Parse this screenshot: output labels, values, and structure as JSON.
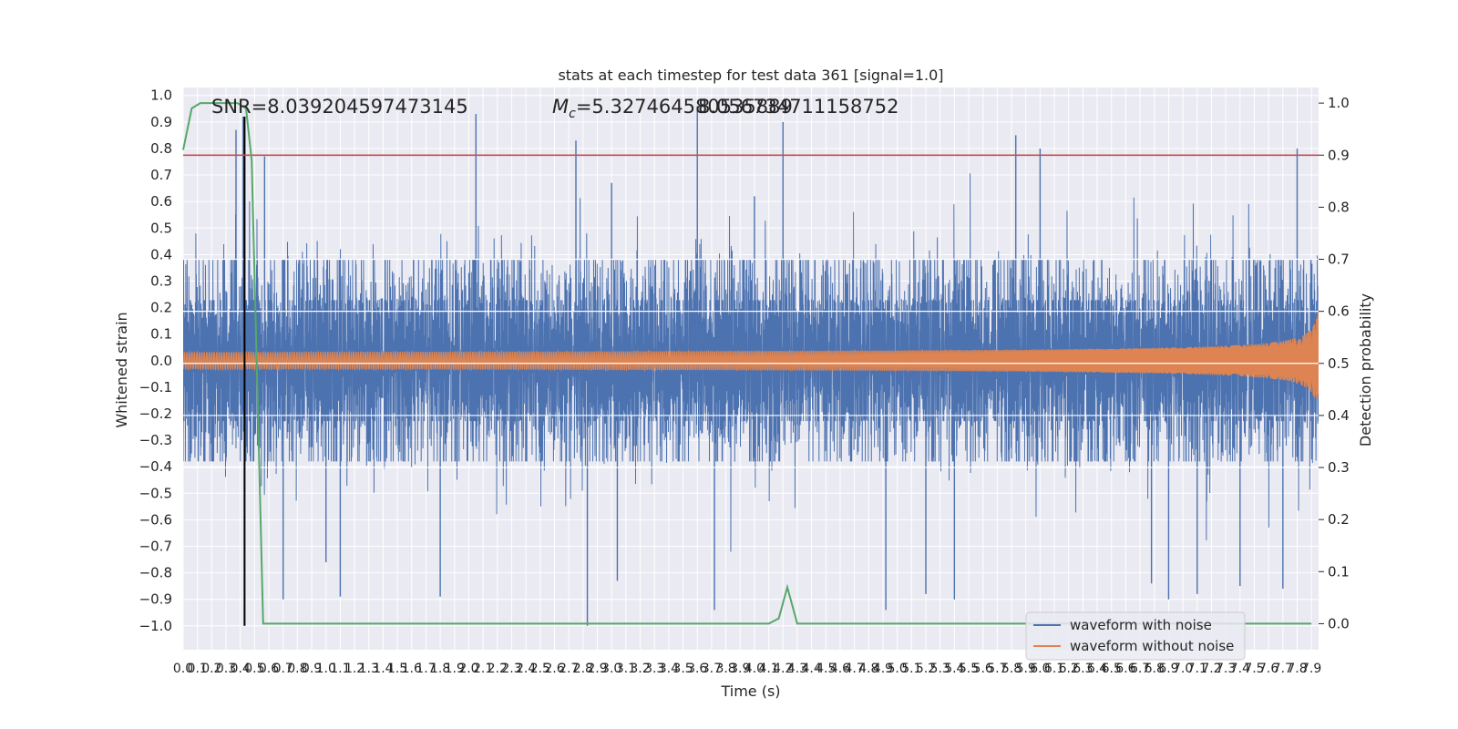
{
  "chart_data": {
    "type": "line",
    "title": "stats at each timestep for test data 361 [signal=1.0]",
    "xlabel": "Time (s)",
    "ylabel_left": "Whitened strain",
    "ylabel_right": "Detection probability",
    "xlim": [
      0.0,
      7.95
    ],
    "ylim_left": [
      -1.09,
      1.03
    ],
    "ylim_right": [
      -0.05,
      1.03
    ],
    "x_ticks": [
      "0.0",
      "0.1",
      "0.2",
      "0.3",
      "0.4",
      "0.5",
      "0.6",
      "0.7",
      "0.8",
      "0.9",
      "1.0",
      "1.1",
      "1.2",
      "1.3",
      "1.4",
      "1.5",
      "1.6",
      "1.7",
      "1.8",
      "1.9",
      "2.0",
      "2.1",
      "2.2",
      "2.3",
      "2.4",
      "2.5",
      "2.6",
      "2.7",
      "2.8",
      "2.9",
      "3.0",
      "3.1",
      "3.2",
      "3.3",
      "3.4",
      "3.5",
      "3.6",
      "3.7",
      "3.8",
      "3.9",
      "4.0",
      "4.1",
      "4.2",
      "4.3",
      "4.4",
      "4.5",
      "4.6",
      "4.7",
      "4.8",
      "4.9",
      "5.0",
      "5.1",
      "5.2",
      "5.3",
      "5.4",
      "5.5",
      "5.6",
      "5.7",
      "5.8",
      "5.9",
      "6.0",
      "6.1",
      "6.2",
      "6.3",
      "6.4",
      "6.5",
      "6.6",
      "6.7",
      "6.8",
      "6.9",
      "7.0",
      "7.1",
      "7.2",
      "7.3",
      "7.4",
      "7.5",
      "7.6",
      "7.7",
      "7.8",
      "7.9"
    ],
    "y_ticks_left": [
      "1.0",
      "0.9",
      "0.8",
      "0.7",
      "0.6",
      "0.5",
      "0.4",
      "0.3",
      "0.2",
      "0.1",
      "0.0",
      "−0.1",
      "−0.2",
      "−0.3",
      "−0.4",
      "−0.5",
      "−0.6",
      "−0.7",
      "−0.8",
      "−0.9",
      "−1.0"
    ],
    "y_ticks_right": [
      "1.0",
      "0.9",
      "0.8",
      "0.7",
      "0.6",
      "0.5",
      "0.4",
      "0.3",
      "0.2",
      "0.1",
      "0.0"
    ],
    "annotations": {
      "snr": "SNR=8.039204597473145",
      "mc_symbol": "M",
      "mc_sub": "c",
      "mc_value": "=5.327464580535889",
      "overlap": "8.056734711158752"
    },
    "threshold": 0.9,
    "event_marker_time": 0.43,
    "series": [
      {
        "name": "waveform with noise",
        "color": "#4c72b0",
        "axis": "left",
        "kind": "noise",
        "rms": 0.3,
        "extremes": [
          [
            0.37,
            0.87
          ],
          [
            0.42,
            0.92
          ],
          [
            0.41,
            -0.3
          ],
          [
            0.57,
            0.77
          ],
          [
            0.7,
            -0.9
          ],
          [
            1.0,
            -0.76
          ],
          [
            1.1,
            -0.89
          ],
          [
            1.8,
            -0.89
          ],
          [
            2.05,
            0.93
          ],
          [
            2.75,
            0.83
          ],
          [
            2.83,
            -1.0
          ],
          [
            3.0,
            0.67
          ],
          [
            3.04,
            -0.83
          ],
          [
            3.6,
            0.96
          ],
          [
            3.72,
            -0.94
          ],
          [
            4.0,
            0.62
          ],
          [
            4.2,
            0.9
          ],
          [
            4.92,
            -0.94
          ],
          [
            5.2,
            -0.88
          ],
          [
            5.4,
            -0.9
          ],
          [
            5.83,
            0.85
          ],
          [
            6.0,
            0.8
          ],
          [
            6.78,
            -0.84
          ],
          [
            6.9,
            -0.9
          ],
          [
            7.1,
            -0.88
          ],
          [
            7.4,
            -0.85
          ],
          [
            7.7,
            -0.86
          ],
          [
            7.8,
            0.8
          ]
        ]
      },
      {
        "name": "waveform without noise",
        "color": "#dd8452",
        "axis": "left",
        "kind": "chirp",
        "amp_start": 0.02,
        "amp_end": 0.2,
        "t_merge": 7.95
      },
      {
        "name": "detection probability",
        "color": "#55a868",
        "axis": "right",
        "kind": "line",
        "x": [
          0.0,
          0.06,
          0.12,
          0.2,
          0.3,
          0.38,
          0.44,
          0.48,
          0.56,
          0.65,
          1.0,
          2.0,
          3.0,
          4.0,
          4.1,
          4.17,
          4.23,
          4.3,
          5.0,
          6.0,
          7.0,
          7.9
        ],
        "y": [
          0.91,
          0.99,
          1.0,
          1.0,
          1.0,
          1.0,
          0.99,
          0.89,
          0.0,
          0.0,
          0.0,
          0.0,
          0.0,
          0.0,
          0.0,
          0.01,
          0.07,
          0.0,
          0.0,
          0.0,
          0.0,
          0.0
        ]
      },
      {
        "name": "threshold",
        "color": "#c44e52",
        "axis": "right",
        "kind": "hline",
        "y": 0.9
      }
    ],
    "legend": {
      "position": "lower-right",
      "entries": [
        {
          "label": "waveform with noise",
          "color": "#4c72b0"
        },
        {
          "label": "waveform without noise",
          "color": "#dd8452"
        }
      ]
    }
  }
}
